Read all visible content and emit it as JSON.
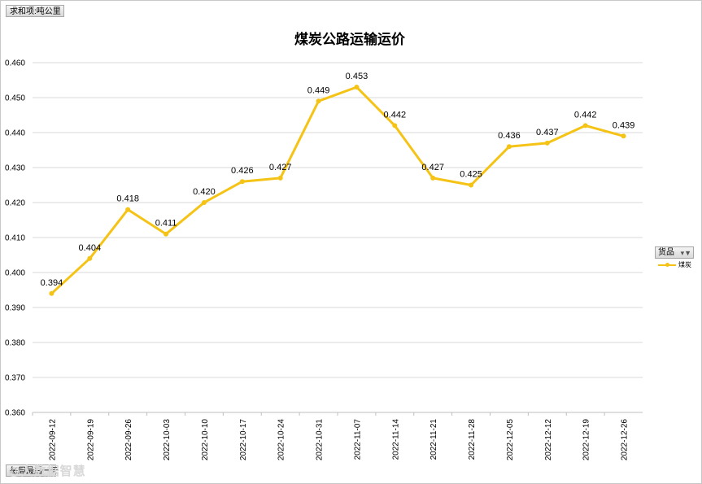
{
  "value_field": {
    "label": "求和项:吨公里"
  },
  "row_field": {
    "label": "每周最后一天"
  },
  "legend_filter": {
    "label": "货品",
    "icon": "filter-icon"
  },
  "watermark": {
    "text": "@大数据智慧"
  },
  "chart_data": {
    "type": "line",
    "title": "煤炭公路运输运价",
    "xlabel": "",
    "ylabel": "",
    "categories": [
      "2022-09-12",
      "2022-09-19",
      "2022-09-26",
      "2022-10-03",
      "2022-10-10",
      "2022-10-17",
      "2022-10-24",
      "2022-10-31",
      "2022-11-07",
      "2022-11-14",
      "2022-11-21",
      "2022-11-28",
      "2022-12-05",
      "2022-12-12",
      "2022-12-19",
      "2022-12-26"
    ],
    "series": [
      {
        "name": "煤炭",
        "color": "#f5c315",
        "values": [
          0.394,
          0.404,
          0.418,
          0.411,
          0.42,
          0.426,
          0.427,
          0.449,
          0.453,
          0.442,
          0.427,
          0.425,
          0.436,
          0.437,
          0.442,
          0.439
        ],
        "labels": [
          "0.394",
          "0.404",
          "0.418",
          "0.411",
          "0.420",
          "0.426",
          "0.427",
          "0.449",
          "0.453",
          "0.442",
          "0.427",
          "0.425",
          "0.436",
          "0.437",
          "0.442",
          "0.439"
        ]
      }
    ],
    "ylim": [
      0.36,
      0.46
    ],
    "yticks": [
      "0.360",
      "0.370",
      "0.380",
      "0.390",
      "0.400",
      "0.410",
      "0.420",
      "0.430",
      "0.440",
      "0.450",
      "0.460"
    ],
    "grid": true,
    "legend_position": "right"
  }
}
